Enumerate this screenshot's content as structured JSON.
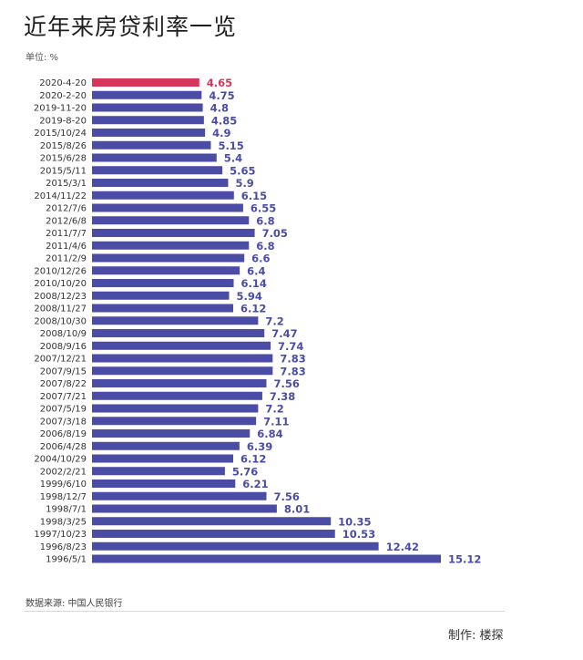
{
  "title": "近年来房贷利率一览",
  "unit": "单位: %",
  "source": "数据来源: 中国人民银行",
  "author": "制作: 楼探",
  "colors": {
    "highlight": "#d6365b",
    "bar": "#4a4ca6",
    "label": "#4a4ca6",
    "highlight_label": "#d6365b"
  },
  "chart_data": {
    "type": "bar",
    "orientation": "horizontal",
    "title": "近年来房贷利率一览",
    "unit": "%",
    "categories": [
      "2020-4-20",
      "2020-2-20",
      "2019-11-20",
      "2019-8-20",
      "2015/10/24",
      "2015/8/26",
      "2015/6/28",
      "2015/5/11",
      "2015/3/1",
      "2014/11/22",
      "2012/7/6",
      "2012/6/8",
      "2011/7/7",
      "2011/4/6",
      "2011/2/9",
      "2010/12/26",
      "2010/10/20",
      "2008/12/23",
      "2008/11/27",
      "2008/10/30",
      "2008/10/9",
      "2008/9/16",
      "2007/12/21",
      "2007/9/15",
      "2007/8/22",
      "2007/7/21",
      "2007/5/19",
      "2007/3/18",
      "2006/8/19",
      "2006/4/28",
      "2004/10/29",
      "2002/2/21",
      "1999/6/10",
      "1998/12/7",
      "1998/7/1",
      "1998/3/25",
      "1997/10/23",
      "1996/8/23",
      "1996/5/1"
    ],
    "values": [
      4.65,
      4.75,
      4.8,
      4.85,
      4.9,
      5.15,
      5.4,
      5.65,
      5.9,
      6.15,
      6.55,
      6.8,
      7.05,
      6.8,
      6.6,
      6.4,
      6.14,
      5.94,
      6.12,
      7.2,
      7.47,
      7.74,
      7.83,
      7.83,
      7.56,
      7.38,
      7.2,
      7.11,
      6.84,
      6.39,
      6.12,
      5.76,
      6.21,
      7.56,
      8.01,
      10.35,
      10.53,
      12.42,
      15.12
    ],
    "value_labels": [
      "4.65",
      "4.75",
      "4.8",
      "4.85",
      "4.9",
      "5.15",
      "5.4",
      "5.65",
      "5.9",
      "6.15",
      "6.55",
      "6.8",
      "7.05",
      "6.8",
      "6.6",
      "6.4",
      "6.14",
      "5.94",
      "6.12",
      "7.2",
      "7.47",
      "7.74",
      "7.83",
      "7.83",
      "7.56",
      "7.38",
      "7.2",
      "7.11",
      "6.84",
      "6.39",
      "6.12",
      "5.76",
      "6.21",
      "7.56",
      "8.01",
      "10.35",
      "10.53",
      "12.42",
      "15.12"
    ],
    "highlight_index": 0,
    "grid": false,
    "legend": "none"
  }
}
